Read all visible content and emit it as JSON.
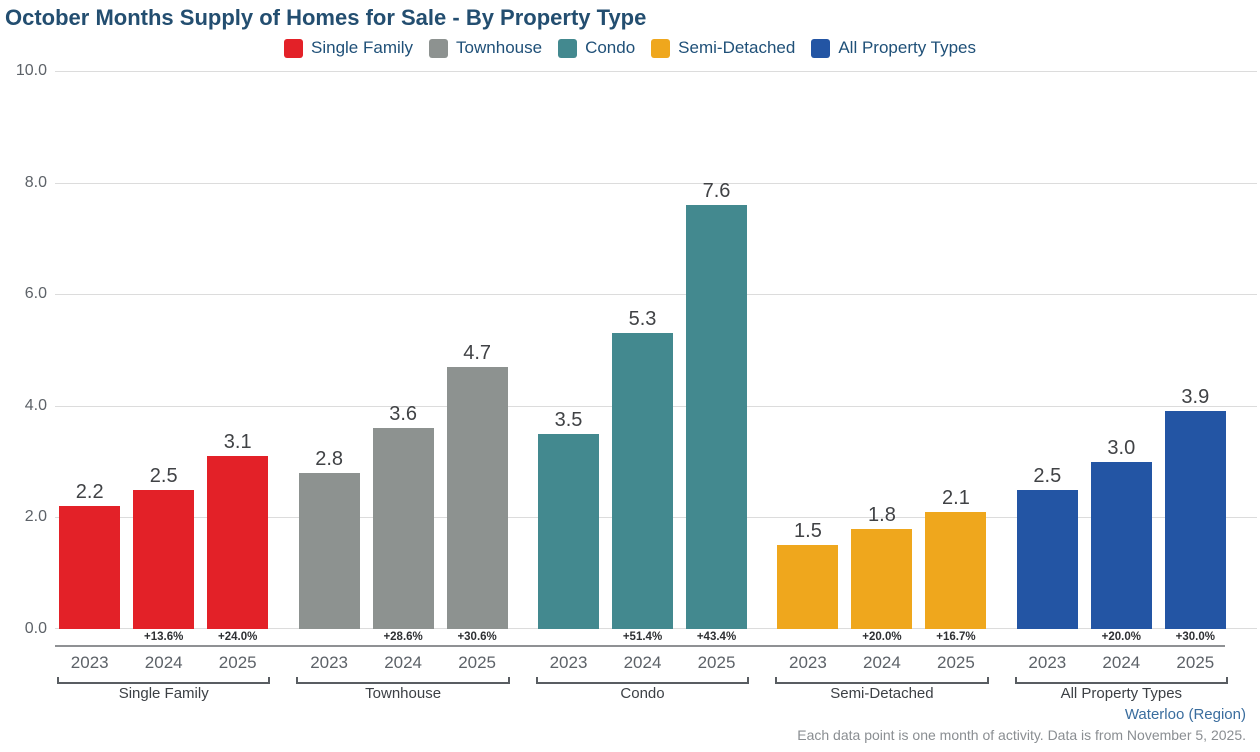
{
  "title": "October Months Supply of Homes for Sale - By Property Type",
  "footer": {
    "region_link": "Waterloo (Region)",
    "note": "Each data point is one month of activity. Data is from November 5, 2025."
  },
  "chart_data": {
    "type": "bar",
    "title": "October Months Supply of Homes for Sale - By Property Type",
    "xlabel": "",
    "ylabel": "",
    "ylim": [
      0,
      10
    ],
    "ytick_labels": [
      "10.0",
      "8.0",
      "6.0",
      "4.0",
      "2.0",
      "0.0"
    ],
    "grid": true,
    "legend_position": "top",
    "years": [
      "2023",
      "2024",
      "2025"
    ],
    "gridline_color": "#dcdcdc",
    "groups": [
      {
        "label": "Single Family",
        "color": "#e32128",
        "values": [
          2.2,
          2.5,
          3.1
        ],
        "value_labels": [
          "2.2",
          "2.5",
          "3.1"
        ],
        "pct_changes": [
          "",
          "+13.6%",
          "+24.0%"
        ]
      },
      {
        "label": "Townhouse",
        "color": "#8d9290",
        "values": [
          2.8,
          3.6,
          4.7
        ],
        "value_labels": [
          "2.8",
          "3.6",
          "4.7"
        ],
        "pct_changes": [
          "",
          "+28.6%",
          "+30.6%"
        ]
      },
      {
        "label": "Condo",
        "color": "#43898f",
        "values": [
          3.5,
          5.3,
          7.6
        ],
        "value_labels": [
          "3.5",
          "5.3",
          "7.6"
        ],
        "pct_changes": [
          "",
          "+51.4%",
          "+43.4%"
        ]
      },
      {
        "label": "Semi-Detached",
        "color": "#efa71d",
        "values": [
          1.5,
          1.8,
          2.1
        ],
        "value_labels": [
          "1.5",
          "1.8",
          "2.1"
        ],
        "pct_changes": [
          "",
          "+20.0%",
          "+16.7%"
        ]
      },
      {
        "label": "All Property Types",
        "color": "#2355a4",
        "values": [
          2.5,
          3.0,
          3.9
        ],
        "value_labels": [
          "2.5",
          "3.0",
          "3.9"
        ],
        "pct_changes": [
          "",
          "+20.0%",
          "+30.0%"
        ]
      }
    ]
  }
}
